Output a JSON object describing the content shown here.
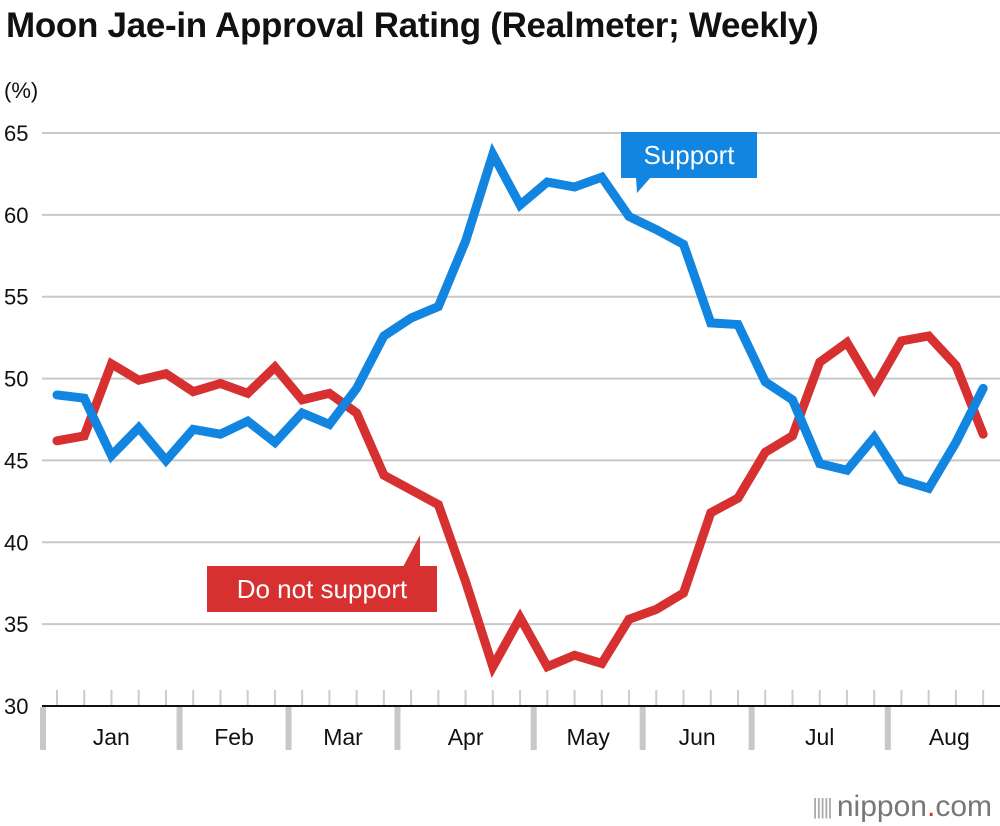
{
  "chart_data": {
    "type": "line",
    "title": "Moon Jae-in Approval Rating (Realmeter; Weekly)",
    "ylabel": "(%)",
    "ylim": [
      30,
      65
    ],
    "yticks": [
      30,
      35,
      40,
      45,
      50,
      55,
      60,
      65
    ],
    "grid": true,
    "months": [
      "Jan",
      "Feb",
      "Mar",
      "Apr",
      "May",
      "Jun",
      "Jul",
      "Aug"
    ],
    "weeks_per_month": [
      5,
      4,
      4,
      5,
      4,
      4,
      5,
      4
    ],
    "series": [
      {
        "name": "Support",
        "color": "#1185e0",
        "values": [
          49.0,
          48.8,
          45.3,
          47.0,
          45.0,
          46.9,
          46.6,
          47.4,
          46.1,
          47.9,
          47.2,
          49.4,
          52.6,
          53.7,
          54.4,
          58.4,
          63.7,
          60.6,
          62.0,
          61.7,
          62.3,
          59.9,
          59.1,
          58.2,
          53.4,
          53.3,
          49.8,
          48.7,
          44.8,
          44.4,
          46.4,
          43.8,
          43.3,
          46.1,
          49.4
        ]
      },
      {
        "name": "Do not support",
        "color": "#d63030",
        "values": [
          46.2,
          46.5,
          50.9,
          49.9,
          50.3,
          49.2,
          49.7,
          49.1,
          50.7,
          48.7,
          49.1,
          47.9,
          44.1,
          43.2,
          42.3,
          37.6,
          32.4,
          35.4,
          32.4,
          33.1,
          32.6,
          35.3,
          35.9,
          36.9,
          41.8,
          42.7,
          45.5,
          46.5,
          51.0,
          52.2,
          49.4,
          52.3,
          52.6,
          50.8,
          46.6
        ]
      }
    ]
  },
  "logo": {
    "name": "nippon",
    "dot": ".",
    "suffix": "com"
  }
}
